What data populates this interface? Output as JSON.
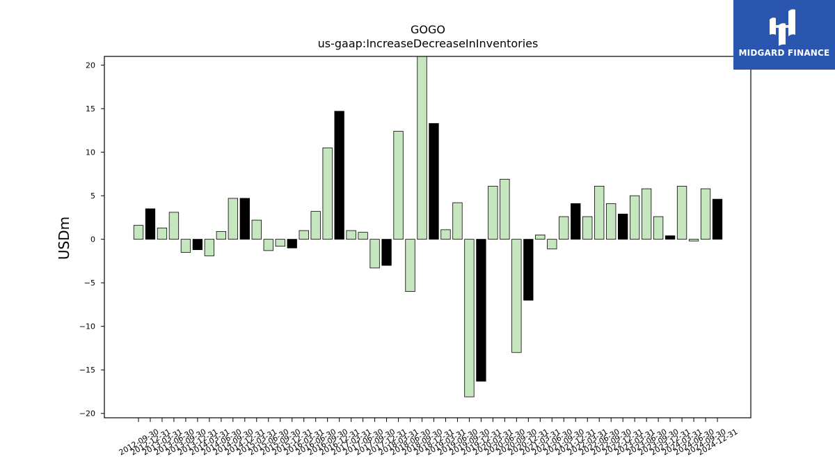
{
  "logo": {
    "name": "MIDGARD FINANCE"
  },
  "chart_data": {
    "type": "bar",
    "title": "GOGO",
    "subtitle": "us-gaap:IncreaseDecreaseInInventories",
    "xlabel": "",
    "ylabel": "USDm",
    "ylim": [
      -20.5,
      21.0
    ],
    "yticks": [
      -20,
      -15,
      -10,
      -5,
      0,
      5,
      10,
      15,
      20
    ],
    "grid": false,
    "colors": {
      "quarter": "#c6e6c0",
      "year_end": "#000000",
      "edge": "#000000"
    },
    "categories": [
      "2012-09-30",
      "2012-12-31",
      "2013-03-31",
      "2013-06-30",
      "2013-09-30",
      "2013-12-31",
      "2014-03-31",
      "2014-06-30",
      "2014-09-30",
      "2014-12-31",
      "2015-03-31",
      "2015-06-30",
      "2015-09-30",
      "2015-12-31",
      "2016-03-31",
      "2016-06-30",
      "2016-09-30",
      "2016-12-31",
      "2017-03-31",
      "2017-06-30",
      "2017-09-30",
      "2017-12-31",
      "2018-03-31",
      "2018-06-30",
      "2018-09-30",
      "2018-12-31",
      "2019-03-31",
      "2019-06-30",
      "2019-09-30",
      "2019-12-31",
      "2020-03-31",
      "2020-06-30",
      "2020-09-30",
      "2020-12-31",
      "2021-03-31",
      "2021-06-30",
      "2021-09-30",
      "2021-12-31",
      "2022-03-31",
      "2022-06-30",
      "2022-09-30",
      "2022-12-31",
      "2023-03-31",
      "2023-06-30",
      "2023-09-30",
      "2023-12-31",
      "2024-03-31",
      "2024-06-30",
      "2024-09-30",
      "2024-12-31"
    ],
    "values": [
      1.6,
      3.5,
      1.3,
      3.1,
      -1.5,
      -1.2,
      -1.9,
      0.9,
      4.7,
      4.7,
      2.2,
      -1.3,
      -0.8,
      -1.0,
      1.0,
      3.2,
      10.5,
      14.7,
      1.0,
      0.8,
      -3.3,
      -3.0,
      12.4,
      -6.0,
      21.0,
      13.3,
      1.1,
      4.2,
      -18.1,
      -16.3,
      6.1,
      6.9,
      -13.0,
      -7.0,
      0.5,
      -1.1,
      2.6,
      4.1,
      2.6,
      6.1,
      4.1,
      2.9,
      5.0,
      5.8,
      2.6,
      0.4,
      6.1,
      -0.2,
      5.8,
      4.6
    ],
    "year_end_flags": [
      false,
      true,
      false,
      false,
      false,
      true,
      false,
      false,
      false,
      true,
      false,
      false,
      false,
      true,
      false,
      false,
      false,
      true,
      false,
      false,
      false,
      true,
      false,
      false,
      false,
      true,
      false,
      false,
      false,
      true,
      false,
      false,
      false,
      true,
      false,
      false,
      false,
      true,
      false,
      false,
      false,
      true,
      false,
      false,
      false,
      true,
      false,
      false,
      false,
      true
    ]
  }
}
